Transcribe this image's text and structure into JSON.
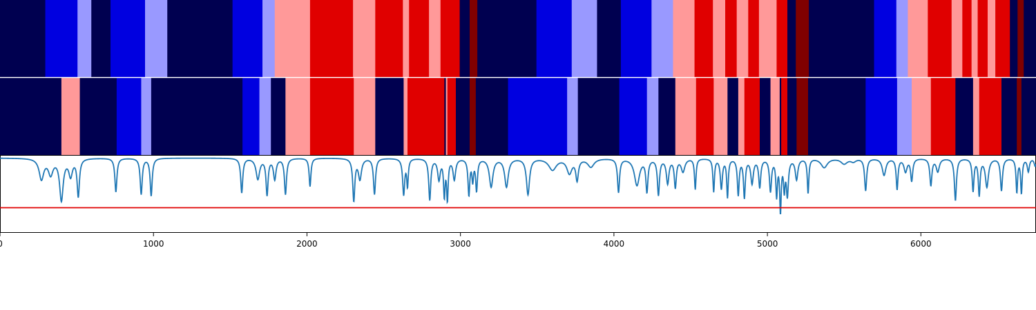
{
  "chart_data": [
    {
      "type": "heatmap",
      "name": "top-state-band",
      "xlim": [
        0,
        6750
      ],
      "palette": {
        "0": "#000050",
        "1": "#0000e0",
        "2": "#9999ff",
        "3": "#ff9999",
        "4": "#e00000",
        "5": "#800000"
      },
      "segments": [
        [
          0,
          295,
          0
        ],
        [
          295,
          505,
          1
        ],
        [
          505,
          595,
          2
        ],
        [
          595,
          720,
          0
        ],
        [
          720,
          945,
          1
        ],
        [
          945,
          1090,
          2
        ],
        [
          1090,
          1515,
          0
        ],
        [
          1515,
          1710,
          1
        ],
        [
          1710,
          1790,
          2
        ],
        [
          1790,
          2020,
          3
        ],
        [
          2020,
          2300,
          4
        ],
        [
          2300,
          2445,
          3
        ],
        [
          2445,
          2625,
          4
        ],
        [
          2625,
          2665,
          3
        ],
        [
          2665,
          2795,
          4
        ],
        [
          2795,
          2870,
          3
        ],
        [
          2870,
          2995,
          4
        ],
        [
          2995,
          3060,
          0
        ],
        [
          3060,
          3110,
          5
        ],
        [
          3110,
          3495,
          0
        ],
        [
          3495,
          3725,
          1
        ],
        [
          3725,
          3890,
          2
        ],
        [
          3890,
          4045,
          0
        ],
        [
          4045,
          4245,
          1
        ],
        [
          4245,
          4385,
          2
        ],
        [
          4385,
          4525,
          3
        ],
        [
          4525,
          4645,
          4
        ],
        [
          4645,
          4725,
          3
        ],
        [
          4725,
          4800,
          4
        ],
        [
          4800,
          4875,
          3
        ],
        [
          4875,
          4945,
          4
        ],
        [
          4945,
          5060,
          3
        ],
        [
          5060,
          5130,
          4
        ],
        [
          5130,
          5185,
          0
        ],
        [
          5185,
          5270,
          5
        ],
        [
          5270,
          5695,
          0
        ],
        [
          5695,
          5840,
          1
        ],
        [
          5840,
          5915,
          2
        ],
        [
          5915,
          6045,
          3
        ],
        [
          6045,
          6200,
          4
        ],
        [
          6200,
          6270,
          3
        ],
        [
          6270,
          6330,
          4
        ],
        [
          6330,
          6370,
          3
        ],
        [
          6370,
          6435,
          4
        ],
        [
          6435,
          6485,
          3
        ],
        [
          6485,
          6580,
          4
        ],
        [
          6580,
          6630,
          0
        ],
        [
          6630,
          6670,
          5
        ],
        [
          6670,
          6750,
          0
        ]
      ]
    },
    {
      "type": "heatmap",
      "name": "bottom-state-band",
      "xlim": [
        0,
        6750
      ],
      "palette": {
        "0": "#000050",
        "1": "#0000e0",
        "2": "#9999ff",
        "3": "#ff9999",
        "4": "#e00000",
        "5": "#800000"
      },
      "segments": [
        [
          0,
          400,
          0
        ],
        [
          400,
          520,
          3
        ],
        [
          520,
          760,
          0
        ],
        [
          760,
          920,
          1
        ],
        [
          920,
          985,
          2
        ],
        [
          985,
          1580,
          0
        ],
        [
          1580,
          1690,
          1
        ],
        [
          1690,
          1765,
          2
        ],
        [
          1765,
          1860,
          0
        ],
        [
          1860,
          2020,
          3
        ],
        [
          2020,
          2305,
          4
        ],
        [
          2305,
          2445,
          3
        ],
        [
          2445,
          2630,
          0
        ],
        [
          2630,
          2655,
          3
        ],
        [
          2655,
          2895,
          4
        ],
        [
          2895,
          2905,
          0
        ],
        [
          2905,
          2915,
          3
        ],
        [
          2915,
          2970,
          4
        ],
        [
          2970,
          3060,
          0
        ],
        [
          3060,
          3100,
          5
        ],
        [
          3100,
          3310,
          0
        ],
        [
          3310,
          3695,
          1
        ],
        [
          3695,
          3765,
          2
        ],
        [
          3765,
          4035,
          0
        ],
        [
          4035,
          4215,
          1
        ],
        [
          4215,
          4290,
          2
        ],
        [
          4290,
          4400,
          0
        ],
        [
          4400,
          4535,
          3
        ],
        [
          4535,
          4650,
          4
        ],
        [
          4650,
          4740,
          3
        ],
        [
          4740,
          4810,
          0
        ],
        [
          4810,
          4850,
          3
        ],
        [
          4850,
          4950,
          4
        ],
        [
          4950,
          5020,
          0
        ],
        [
          5020,
          5080,
          3
        ],
        [
          5080,
          5090,
          0
        ],
        [
          5090,
          5130,
          4
        ],
        [
          5130,
          5190,
          0
        ],
        [
          5190,
          5265,
          5
        ],
        [
          5265,
          5640,
          0
        ],
        [
          5640,
          5845,
          1
        ],
        [
          5845,
          5940,
          2
        ],
        [
          5940,
          6065,
          3
        ],
        [
          6065,
          6225,
          4
        ],
        [
          6225,
          6340,
          0
        ],
        [
          6340,
          6380,
          3
        ],
        [
          6380,
          6525,
          4
        ],
        [
          6525,
          6625,
          0
        ],
        [
          6625,
          6655,
          5
        ],
        [
          6655,
          6750,
          0
        ]
      ]
    },
    {
      "type": "line",
      "name": "signal-trace",
      "xlim": [
        0,
        6750
      ],
      "ylim": [
        0,
        1
      ],
      "threshold": 0.32,
      "threshold_color": "#e00000",
      "line_color": "#1f77b4",
      "baseline": 0.97,
      "dips": [
        [
          270,
          0.7,
          18
        ],
        [
          330,
          0.77,
          18
        ],
        [
          400,
          0.43,
          14
        ],
        [
          460,
          0.75,
          14
        ],
        [
          510,
          0.48,
          9
        ],
        [
          755,
          0.53,
          8
        ],
        [
          920,
          0.5,
          8
        ],
        [
          985,
          0.48,
          8
        ],
        [
          1575,
          0.52,
          8
        ],
        [
          1680,
          0.7,
          14
        ],
        [
          1740,
          0.5,
          8
        ],
        [
          1790,
          0.7,
          10
        ],
        [
          1860,
          0.5,
          8
        ],
        [
          2020,
          0.6,
          7
        ],
        [
          2305,
          0.42,
          8
        ],
        [
          2345,
          0.7,
          12
        ],
        [
          2440,
          0.5,
          8
        ],
        [
          2630,
          0.5,
          8
        ],
        [
          2655,
          0.62,
          6
        ],
        [
          2800,
          0.43,
          8
        ],
        [
          2860,
          0.7,
          10
        ],
        [
          2895,
          0.5,
          6
        ],
        [
          2915,
          0.45,
          6
        ],
        [
          2960,
          0.7,
          10
        ],
        [
          3055,
          0.5,
          7
        ],
        [
          3080,
          0.7,
          6
        ],
        [
          3105,
          0.56,
          7
        ],
        [
          3200,
          0.6,
          14
        ],
        [
          3300,
          0.6,
          14
        ],
        [
          3440,
          0.5,
          12
        ],
        [
          3600,
          0.82,
          30
        ],
        [
          3710,
          0.78,
          20
        ],
        [
          3760,
          0.7,
          10
        ],
        [
          3850,
          0.86,
          25
        ],
        [
          4030,
          0.53,
          8
        ],
        [
          4150,
          0.62,
          20
        ],
        [
          4215,
          0.55,
          8
        ],
        [
          4290,
          0.5,
          8
        ],
        [
          4350,
          0.65,
          10
        ],
        [
          4400,
          0.6,
          8
        ],
        [
          4450,
          0.8,
          14
        ],
        [
          4530,
          0.57,
          6
        ],
        [
          4650,
          0.54,
          6
        ],
        [
          4700,
          0.58,
          8
        ],
        [
          4740,
          0.47,
          6
        ],
        [
          4810,
          0.5,
          7
        ],
        [
          4850,
          0.47,
          7
        ],
        [
          4900,
          0.65,
          10
        ],
        [
          4950,
          0.6,
          8
        ],
        [
          5020,
          0.55,
          8
        ],
        [
          5060,
          0.5,
          6
        ],
        [
          5085,
          0.3,
          6
        ],
        [
          5110,
          0.6,
          6
        ],
        [
          5130,
          0.5,
          8
        ],
        [
          5190,
          0.7,
          10
        ],
        [
          5265,
          0.52,
          6
        ],
        [
          5370,
          0.85,
          25
        ],
        [
          5500,
          0.9,
          25
        ],
        [
          5560,
          0.93,
          20
        ],
        [
          5640,
          0.55,
          8
        ],
        [
          5760,
          0.75,
          14
        ],
        [
          5845,
          0.57,
          7
        ],
        [
          5900,
          0.8,
          12
        ],
        [
          5940,
          0.68,
          8
        ],
        [
          6065,
          0.62,
          8
        ],
        [
          6110,
          0.8,
          12
        ],
        [
          6225,
          0.42,
          8
        ],
        [
          6340,
          0.55,
          7
        ],
        [
          6380,
          0.5,
          7
        ],
        [
          6430,
          0.6,
          12
        ],
        [
          6525,
          0.55,
          8
        ],
        [
          6625,
          0.53,
          6
        ],
        [
          6655,
          0.52,
          6
        ],
        [
          6700,
          0.8,
          8
        ],
        [
          6745,
          0.87,
          8
        ]
      ],
      "x_ticks": [
        0,
        1000,
        2000,
        3000,
        4000,
        5000,
        6000
      ]
    }
  ]
}
